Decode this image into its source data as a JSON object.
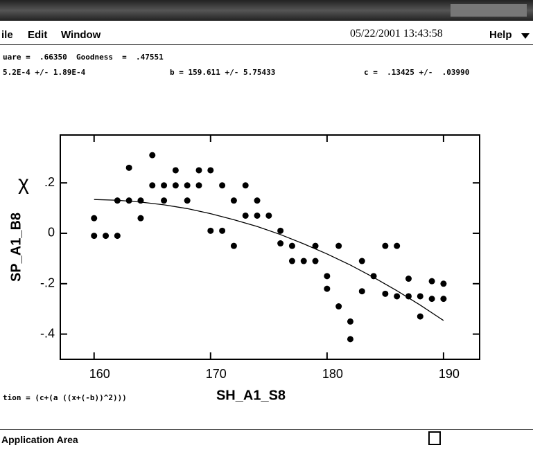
{
  "menu": {
    "items": [
      "ile",
      "Edit",
      "Window"
    ],
    "datetime": "05/22/2001 13:43:58",
    "help": "Help"
  },
  "fit": {
    "line1": "uare =  .66350  Goodness  =  .47551",
    "a": "5.2E-4 +/- 1.89E-4",
    "b": "b = 159.611 +/- 5.75433",
    "c": "c =  .13425 +/-  .03990",
    "equation": "tion = (c+(a ((x+(-b))^2)))"
  },
  "status": {
    "text": "Application Area"
  },
  "chart_data": {
    "type": "scatter",
    "xlabel": "SH_A1_S8",
    "ylabel": "SP_A1_B8",
    "annotation": "χ",
    "xlim": [
      157.1,
      193.1
    ],
    "ylim": [
      -0.5,
      0.39
    ],
    "xticks": [
      160,
      170,
      180,
      190
    ],
    "yticks": [
      {
        "value": 0.2,
        "label": ".2"
      },
      0,
      {
        "value": -0.2,
        "label": "-.2"
      },
      {
        "value": -0.4,
        "label": "-.4"
      }
    ],
    "series": [
      {
        "color": "#000000",
        "marker": "dot",
        "x": [
          160,
          160,
          161,
          162,
          162,
          163,
          163,
          164,
          164,
          165,
          165,
          166,
          166,
          167,
          167,
          168,
          168,
          169,
          169,
          170,
          170,
          171,
          171,
          172,
          172,
          173,
          173,
          174,
          174,
          175,
          176,
          176,
          177,
          177,
          178,
          179,
          179,
          180,
          180,
          181,
          181,
          182,
          182,
          183,
          183,
          184,
          185,
          185,
          186,
          186,
          187,
          187,
          188,
          188,
          189,
          189,
          190,
          190
        ],
        "values": [
          0.06,
          -0.01,
          -0.01,
          -0.01,
          0.13,
          0.26,
          0.13,
          0.13,
          0.06,
          0.31,
          0.19,
          0.19,
          0.13,
          0.25,
          0.19,
          0.19,
          0.13,
          0.25,
          0.19,
          0.25,
          0.01,
          0.19,
          0.01,
          0.13,
          -0.05,
          0.19,
          0.07,
          0.13,
          0.07,
          0.07,
          0.01,
          -0.04,
          -0.05,
          -0.11,
          -0.11,
          -0.05,
          -0.11,
          -0.17,
          -0.22,
          -0.05,
          -0.29,
          -0.35,
          -0.42,
          -0.11,
          -0.23,
          -0.17,
          -0.05,
          -0.24,
          -0.05,
          -0.25,
          -0.18,
          -0.25,
          -0.25,
          -0.33,
          -0.19,
          -0.26,
          -0.2,
          -0.26
        ]
      },
      {
        "color": "#000000",
        "marker": "line",
        "x": [
          160,
          162,
          164,
          166,
          168,
          170,
          172,
          174,
          176,
          178,
          180,
          182,
          184,
          186,
          188,
          190
        ],
        "values": [
          0.134,
          0.131,
          0.124,
          0.113,
          0.098,
          0.078,
          0.054,
          0.027,
          -0.005,
          -0.042,
          -0.082,
          -0.126,
          -0.175,
          -0.228,
          -0.285,
          -0.346
        ]
      }
    ]
  }
}
